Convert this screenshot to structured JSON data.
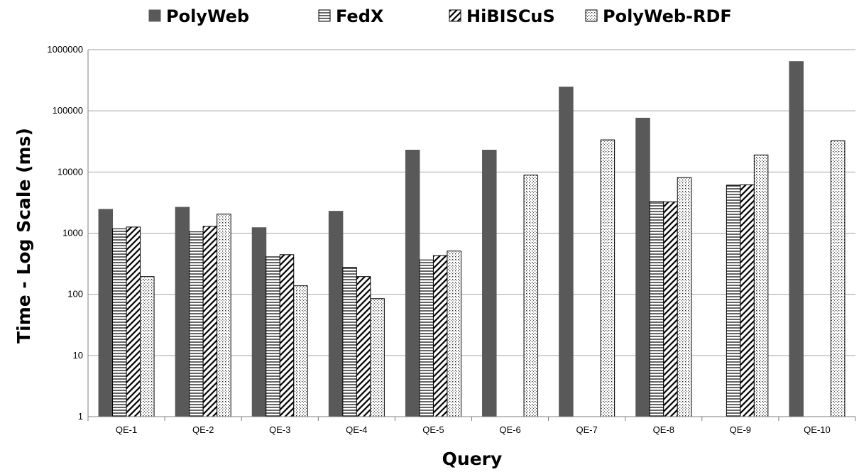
{
  "chart_data": {
    "type": "bar",
    "xlabel": "Query",
    "ylabel": "Time - Log Scale (ms)",
    "y_scale": "log",
    "ylim": [
      1,
      1000000
    ],
    "y_ticks": [
      "1",
      "10",
      "100",
      "1000",
      "10000",
      "100000",
      "1000000"
    ],
    "grid": true,
    "legend_position": "top",
    "categories": [
      "QE-1",
      "QE-2",
      "QE-3",
      "QE-4",
      "QE-5",
      "QE-6",
      "QE-7",
      "QE-8",
      "QE-9",
      "QE-10"
    ],
    "series": [
      {
        "name": "PolyWeb",
        "pattern": "solid",
        "color": "#595959",
        "values": [
          2450,
          2650,
          1230,
          2280,
          22800,
          22800,
          245000,
          76000,
          null,
          640000
        ]
      },
      {
        "name": "FedX",
        "pattern": "horizontal-lines",
        "color": "#000000",
        "values": [
          1180,
          1050,
          410,
          275,
          365,
          null,
          null,
          3300,
          6100,
          null
        ]
      },
      {
        "name": "HiBISCuS",
        "pattern": "diagonal-lines",
        "color": "#000000",
        "values": [
          1260,
          1290,
          445,
          195,
          430,
          null,
          null,
          3250,
          6200,
          null
        ]
      },
      {
        "name": "PolyWeb-RDF",
        "pattern": "dots",
        "color": "#000000",
        "values": [
          195,
          2050,
          138,
          85,
          510,
          8900,
          33500,
          8100,
          19000,
          32500
        ]
      }
    ]
  }
}
